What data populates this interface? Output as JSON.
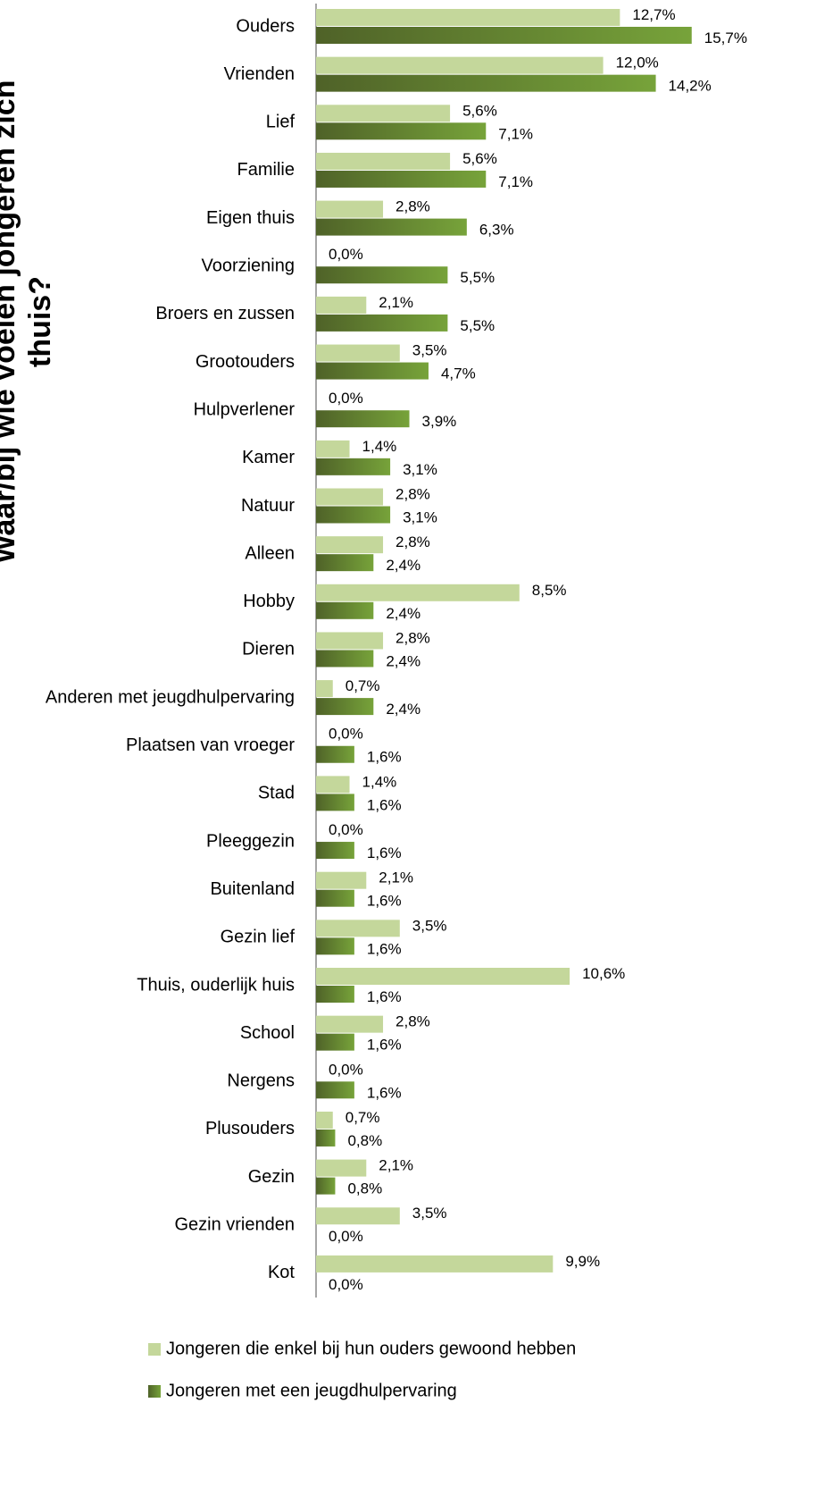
{
  "chart_data": {
    "type": "bar",
    "orientation": "horizontal",
    "title": "Waar/bij wie voelen jongeren zich thuis?",
    "categories": [
      "Ouders",
      "Vrienden",
      "Lief",
      "Familie",
      "Eigen thuis",
      "Voorziening",
      "Broers en zussen",
      "Grootouders",
      "Hulpverlener",
      "Kamer",
      "Natuur",
      "Alleen",
      "Hobby",
      "Dieren",
      "Anderen met jeugdhulpervaring",
      "Plaatsen van vroeger",
      "Stad",
      "Pleeggezin",
      "Buitenland",
      "Gezin lief",
      "Thuis, ouderlijk huis",
      "School",
      "Nergens",
      "Plusouders",
      "Gezin",
      "Gezin vrienden",
      "Kot"
    ],
    "series": [
      {
        "name": "Jongeren die enkel bij hun ouders gewoond hebben",
        "color": "#c4d79b",
        "values": [
          12.7,
          12.0,
          5.6,
          5.6,
          2.8,
          0.0,
          2.1,
          3.5,
          0.0,
          1.4,
          2.8,
          2.8,
          8.5,
          2.8,
          0.7,
          0.0,
          1.4,
          0.0,
          2.1,
          3.5,
          10.6,
          2.8,
          0.0,
          0.7,
          2.1,
          3.5,
          9.9
        ],
        "value_labels": [
          "12,7%",
          "12,0%",
          "5,6%",
          "5,6%",
          "2,8%",
          "0,0%",
          "2,1%",
          "3,5%",
          "0,0%",
          "1,4%",
          "2,8%",
          "2,8%",
          "8,5%",
          "2,8%",
          "0,7%",
          "0,0%",
          "1,4%",
          "0,0%",
          "2,1%",
          "3,5%",
          "10,6%",
          "2,8%",
          "0,0%",
          "0,7%",
          "2,1%",
          "3,5%",
          "9,9%"
        ]
      },
      {
        "name": "Jongeren met een jeugdhulpervaring",
        "color": "#77a33a",
        "values": [
          15.7,
          14.2,
          7.1,
          7.1,
          6.3,
          5.5,
          5.5,
          4.7,
          3.9,
          3.1,
          3.1,
          2.4,
          2.4,
          2.4,
          2.4,
          1.6,
          1.6,
          1.6,
          1.6,
          1.6,
          1.6,
          1.6,
          1.6,
          0.8,
          0.8,
          0.0,
          0.0
        ],
        "value_labels": [
          "15,7%",
          "14,2%",
          "7,1%",
          "7,1%",
          "6,3%",
          "5,5%",
          "5,5%",
          "4,7%",
          "3,9%",
          "3,1%",
          "3,1%",
          "2,4%",
          "2,4%",
          "2,4%",
          "2,4%",
          "1,6%",
          "1,6%",
          "1,6%",
          "1,6%",
          "1,6%",
          "1,6%",
          "1,6%",
          "1,6%",
          "0,8%",
          "0,8%",
          "0,0%",
          "0,0%"
        ]
      }
    ],
    "legend": "bottom"
  }
}
